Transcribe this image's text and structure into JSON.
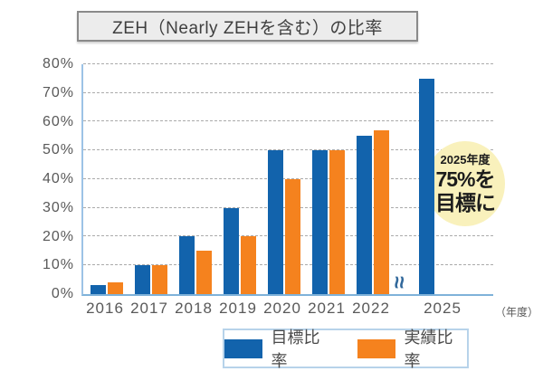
{
  "title": "ZEH（Nearly ZEHを含む）の比率",
  "chart_data": {
    "type": "bar",
    "title": "ZEH（Nearly ZEHを含む）の比率",
    "categories": [
      "2016",
      "2017",
      "2018",
      "2019",
      "2020",
      "2021",
      "2022",
      "2025"
    ],
    "series": [
      {
        "key": "target",
        "name": "目標比率",
        "color": "#1263ac",
        "values": [
          3,
          10,
          20,
          30,
          50,
          50,
          55,
          75
        ]
      },
      {
        "key": "actual",
        "name": "実績比率",
        "color": "#f5821e",
        "values": [
          4,
          10,
          15,
          20,
          40,
          50,
          57,
          null
        ]
      }
    ],
    "ylim": [
      0,
      80
    ],
    "y_tick_step": 10,
    "y_tick_suffix": "%",
    "x_axis_unit": "（年度）",
    "axis_break_after": "2022",
    "grid": "dashed-horizontal",
    "legend_position": "bottom",
    "annotation": "2025年度 75%を 目標に"
  },
  "badge": {
    "line1": "2025年度",
    "line2": "75%を",
    "line3": "目標に",
    "bg": "#f9f1bc"
  },
  "legend": {
    "items": [
      {
        "key": "target",
        "label": "目標比率",
        "color": "#1263ac"
      },
      {
        "key": "actual",
        "label": "実績比率",
        "color": "#f5821e"
      }
    ]
  },
  "colors": {
    "target_blue": "#1263ac",
    "actual_orange": "#f5821e",
    "axis_light_blue": "#9cc3e6",
    "grid_gray": "#ababab",
    "text_gray": "#595959",
    "badge_yellow": "#f9f1bc",
    "legend_border_blue": "#b7d3ea"
  }
}
